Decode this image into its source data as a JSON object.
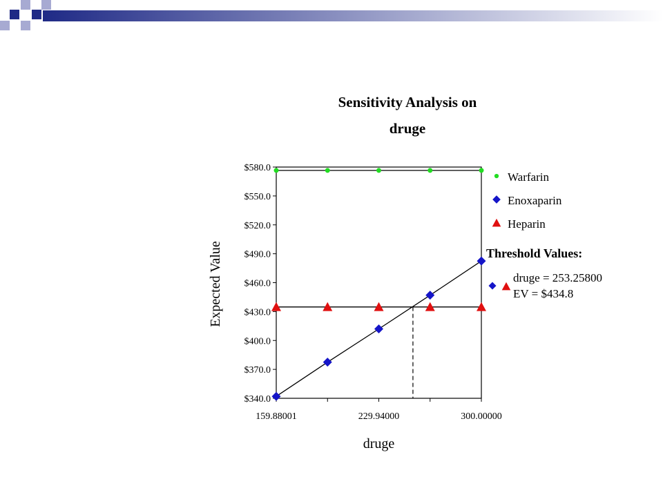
{
  "colors": {
    "deco_navy": "#1f2a86",
    "deco_light": "#a7aad2",
    "warfarin": "#22dd22",
    "enoxaparin": "#1515c8",
    "heparin": "#e01010",
    "line": "#000000"
  },
  "chart_data": {
    "type": "line",
    "title_lines": [
      "Sensitivity Analysis on",
      "druge"
    ],
    "xlabel": "druge",
    "ylabel": "Expected Value",
    "xlim": [
      159.88001,
      300.0
    ],
    "ylim": [
      340.0,
      580.0
    ],
    "x_ticks": [
      {
        "value": 159.88001,
        "label": "159.88001"
      },
      {
        "value": 229.94,
        "label": "229.94000"
      },
      {
        "value": 300.0,
        "label": "300.00000"
      }
    ],
    "y_ticks": [
      {
        "value": 340,
        "label": "$340.0"
      },
      {
        "value": 370,
        "label": "$370.0"
      },
      {
        "value": 400,
        "label": "$400.0"
      },
      {
        "value": 430,
        "label": "$430.0"
      },
      {
        "value": 460,
        "label": "$460.0"
      },
      {
        "value": 490,
        "label": "$490.0"
      },
      {
        "value": 520,
        "label": "$520.0"
      },
      {
        "value": 550,
        "label": "$550.0"
      },
      {
        "value": 580,
        "label": "$580.0"
      }
    ],
    "x": [
      159.88001,
      194.91,
      229.94,
      264.97,
      300.0
    ],
    "series": [
      {
        "name": "Warfarin",
        "marker": "circle",
        "color": "#22dd22",
        "values": [
          576.5,
          576.5,
          576.5,
          576.5,
          576.5
        ]
      },
      {
        "name": "Enoxaparin",
        "marker": "diamond",
        "color": "#1515c8",
        "values": [
          342.0,
          377.5,
          412.0,
          447.0,
          482.5
        ]
      },
      {
        "name": "Heparin",
        "marker": "triangle",
        "color": "#e01010",
        "values": [
          434.8,
          434.8,
          434.8,
          434.8,
          434.8
        ]
      }
    ],
    "threshold": {
      "title": "Threshold Values:",
      "line1": "druge = 253.25800",
      "line2": "EV = $434.8",
      "x": 253.258,
      "ev": 434.8
    },
    "legend_position": "right",
    "grid": false
  }
}
